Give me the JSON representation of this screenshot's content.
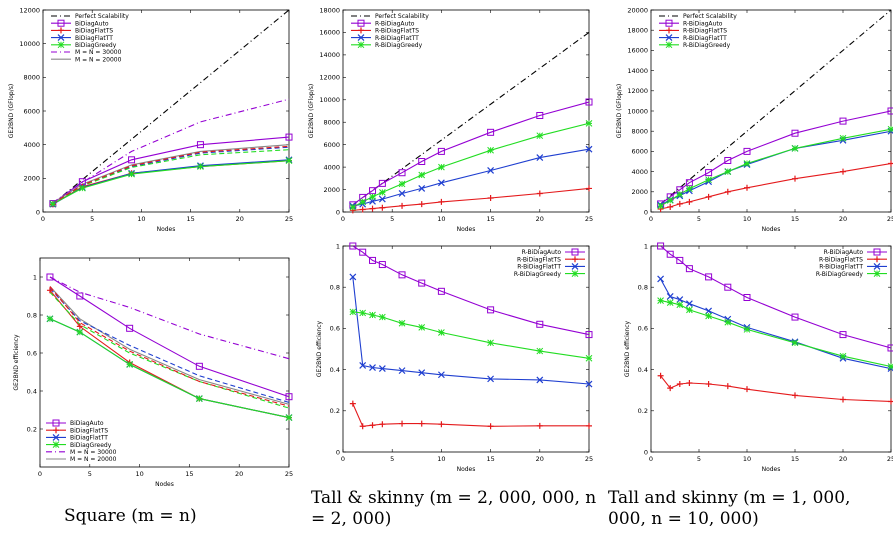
{
  "captions": {
    "col1": "Square (m = n)",
    "col2": "Tall & skinny (m = 2, 000, 000, n = 2, 000)",
    "col3": "Tall and skinny (m = 1, 000, 000, n = 10, 000)"
  },
  "chart_data": [
    {
      "id": "square-perf",
      "type": "line",
      "xlabel": "Nodes",
      "ylabel": "GE2BND (GFlop/s)",
      "xlim": [
        0,
        25
      ],
      "ylim": [
        0,
        12000
      ],
      "xticks": [
        0,
        5,
        10,
        15,
        20,
        25
      ],
      "yticks": [
        0,
        2000,
        4000,
        6000,
        8000,
        10000,
        12000
      ],
      "legend": "top-left",
      "series": [
        {
          "name": "Perfect Scalability",
          "color": "#000000",
          "dash": "6,3,1,3",
          "marker": "none",
          "x": [
            1,
            25
          ],
          "y": [
            480,
            12000
          ]
        },
        {
          "name": "BiDiagAuto",
          "color": "#9400d3",
          "dash": "",
          "marker": "square",
          "x": [
            1,
            4,
            9,
            16,
            25
          ],
          "y": [
            500,
            1800,
            3100,
            4000,
            4450
          ]
        },
        {
          "name": "BiDiagFlatTS",
          "color": "#e41a1c",
          "dash": "",
          "marker": "plus",
          "x": [
            1,
            4,
            9,
            16,
            25
          ],
          "y": [
            450,
            1500,
            2300,
            2700,
            3050
          ]
        },
        {
          "name": "BiDiagFlatTT",
          "color": "#1f3fd0",
          "dash": "",
          "marker": "x",
          "x": [
            1,
            4,
            9,
            16,
            25
          ],
          "y": [
            460,
            1450,
            2300,
            2750,
            3100
          ]
        },
        {
          "name": "BiDiagGreedy",
          "color": "#22dd22",
          "dash": "",
          "marker": "star",
          "x": [
            1,
            4,
            9,
            16,
            25
          ],
          "y": [
            480,
            1420,
            2250,
            2700,
            3050
          ]
        },
        {
          "name": "M = N = 30000",
          "color": "#9400d3",
          "dash": "6,3,1,3",
          "marker": "none",
          "x": [
            1,
            4,
            9,
            16,
            25
          ],
          "y": [
            560,
            1750,
            3600,
            5350,
            6700
          ]
        },
        {
          "name": "M = N = 20000",
          "color": "#888888",
          "dash": "",
          "marker": "none",
          "x": [
            1,
            4,
            9,
            16,
            25
          ],
          "y": [
            520,
            1650,
            2800,
            3600,
            4000
          ]
        },
        {
          "name": "",
          "color": "#1f3fd0",
          "dash": "5,3",
          "marker": "none",
          "x": [
            1,
            4,
            9,
            16,
            25
          ],
          "y": [
            500,
            1600,
            2700,
            3500,
            3850
          ]
        },
        {
          "name": "",
          "color": "#22dd22",
          "dash": "5,3",
          "marker": "none",
          "x": [
            1,
            4,
            9,
            16,
            25
          ],
          "y": [
            490,
            1550,
            2650,
            3400,
            3700
          ]
        },
        {
          "name": "",
          "color": "#e41a1c",
          "dash": "5,3",
          "marker": "none",
          "x": [
            1,
            4,
            9,
            16,
            25
          ],
          "y": [
            500,
            1600,
            2750,
            3550,
            3900
          ]
        }
      ]
    },
    {
      "id": "ts2000-perf",
      "type": "line",
      "xlabel": "Nodes",
      "ylabel": "GE2BND (GFlop/s)",
      "xlim": [
        0,
        25
      ],
      "ylim": [
        0,
        18000
      ],
      "xticks": [
        0,
        5,
        10,
        15,
        20,
        25
      ],
      "yticks": [
        0,
        2000,
        4000,
        6000,
        8000,
        10000,
        12000,
        14000,
        16000,
        18000
      ],
      "legend": "top-left",
      "series": [
        {
          "name": "Perfect Scalability",
          "color": "#000000",
          "dash": "6,3,1,3",
          "marker": "none",
          "x": [
            1,
            25
          ],
          "y": [
            640,
            16000
          ]
        },
        {
          "name": "R-BiDiagAuto",
          "color": "#9400d3",
          "dash": "",
          "marker": "square",
          "x": [
            1,
            2,
            3,
            4,
            6,
            8,
            10,
            15,
            20,
            25
          ],
          "y": [
            640,
            1300,
            1900,
            2550,
            3500,
            4500,
            5400,
            7100,
            8600,
            9800
          ]
        },
        {
          "name": "R-BiDiagFlatTS",
          "color": "#e41a1c",
          "dash": "",
          "marker": "plus",
          "x": [
            1,
            2,
            3,
            4,
            6,
            8,
            10,
            15,
            20,
            25
          ],
          "y": [
            150,
            220,
            300,
            380,
            550,
            700,
            900,
            1250,
            1650,
            2100
          ]
        },
        {
          "name": "R-BiDiagFlatTT",
          "color": "#1f3fd0",
          "dash": "",
          "marker": "x",
          "x": [
            1,
            2,
            3,
            4,
            6,
            8,
            10,
            15,
            20,
            25
          ],
          "y": [
            530,
            700,
            950,
            1150,
            1650,
            2100,
            2600,
            3700,
            4850,
            5600
          ]
        },
        {
          "name": "R-BiDiagGreedy",
          "color": "#22dd22",
          "dash": "",
          "marker": "star",
          "x": [
            1,
            2,
            3,
            4,
            6,
            8,
            10,
            15,
            20,
            25
          ],
          "y": [
            430,
            900,
            1350,
            1750,
            2500,
            3300,
            4000,
            5500,
            6800,
            7900
          ]
        }
      ]
    },
    {
      "id": "ts10000-perf",
      "type": "line",
      "xlabel": "Nodes",
      "ylabel": "GE2BND (GFlop/s)",
      "xlim": [
        0,
        25
      ],
      "ylim": [
        0,
        20000
      ],
      "xticks": [
        0,
        5,
        10,
        15,
        20,
        25
      ],
      "yticks": [
        0,
        2000,
        4000,
        6000,
        8000,
        10000,
        12000,
        14000,
        16000,
        18000,
        20000
      ],
      "legend": "top-left",
      "series": [
        {
          "name": "Perfect Scalability",
          "color": "#000000",
          "dash": "6,3,1,3",
          "marker": "none",
          "x": [
            1,
            25
          ],
          "y": [
            800,
            20000
          ]
        },
        {
          "name": "R-BiDiagAuto",
          "color": "#9400d3",
          "dash": "",
          "marker": "square",
          "x": [
            1,
            2,
            3,
            4,
            6,
            8,
            10,
            15,
            20,
            25
          ],
          "y": [
            800,
            1500,
            2200,
            2900,
            3900,
            5100,
            6000,
            7800,
            9000,
            10000
          ]
        },
        {
          "name": "R-BiDiagFlatTS",
          "color": "#e41a1c",
          "dash": "",
          "marker": "plus",
          "x": [
            1,
            2,
            3,
            4,
            6,
            8,
            10,
            15,
            20,
            25
          ],
          "y": [
            300,
            500,
            800,
            1000,
            1500,
            2000,
            2400,
            3300,
            4000,
            4800
          ]
        },
        {
          "name": "R-BiDiagFlatTT",
          "color": "#1f3fd0",
          "dash": "",
          "marker": "x",
          "x": [
            1,
            2,
            3,
            4,
            6,
            8,
            10,
            15,
            20,
            25
          ],
          "y": [
            700,
            1200,
            1600,
            2100,
            3000,
            4000,
            4700,
            6300,
            7100,
            8000
          ]
        },
        {
          "name": "R-BiDiagGreedy",
          "color": "#22dd22",
          "dash": "",
          "marker": "star",
          "x": [
            1,
            2,
            3,
            4,
            6,
            8,
            10,
            15,
            20,
            25
          ],
          "y": [
            600,
            1150,
            1750,
            2300,
            3200,
            4000,
            4800,
            6300,
            7300,
            8200
          ]
        }
      ]
    },
    {
      "id": "square-eff",
      "type": "line",
      "xlabel": "Nodes",
      "ylabel": "GE2BND efficiency",
      "xlim": [
        0,
        25
      ],
      "ylim": [
        0,
        1.1
      ],
      "xticks": [
        0,
        5,
        10,
        15,
        20,
        25
      ],
      "yticks": [
        0.2,
        0.4,
        0.6,
        0.8,
        1
      ],
      "legend": "bottom-left",
      "series": [
        {
          "name": "BiDiagAuto",
          "color": "#9400d3",
          "dash": "",
          "marker": "square",
          "x": [
            1,
            4,
            9,
            16,
            25
          ],
          "y": [
            1.0,
            0.9,
            0.73,
            0.53,
            0.37
          ]
        },
        {
          "name": "BiDiagFlatTS",
          "color": "#e41a1c",
          "dash": "",
          "marker": "plus",
          "x": [
            1,
            4,
            9,
            16,
            25
          ],
          "y": [
            0.93,
            0.74,
            0.55,
            0.36,
            0.26
          ]
        },
        {
          "name": "BiDiagFlatTT",
          "color": "#1f3fd0",
          "dash": "",
          "marker": "x",
          "x": [
            1,
            4,
            9,
            16,
            25
          ],
          "y": [
            0.78,
            0.71,
            0.54,
            0.36,
            0.26
          ]
        },
        {
          "name": "BiDiagGreedy",
          "color": "#22dd22",
          "dash": "",
          "marker": "star",
          "x": [
            1,
            4,
            9,
            16,
            25
          ],
          "y": [
            0.78,
            0.71,
            0.54,
            0.36,
            0.26
          ]
        },
        {
          "name": "M = N = 30000",
          "color": "#9400d3",
          "dash": "6,3,1,3",
          "marker": "none",
          "x": [
            1,
            4,
            9,
            16,
            25
          ],
          "y": [
            1.0,
            0.92,
            0.84,
            0.7,
            0.57
          ]
        },
        {
          "name": "M = N = 20000",
          "color": "#888888",
          "dash": "",
          "marker": "none",
          "x": [
            1,
            4,
            9,
            16,
            25
          ],
          "y": [
            0.95,
            0.78,
            0.62,
            0.46,
            0.33
          ]
        },
        {
          "name": "",
          "color": "#1f3fd0",
          "dash": "5,3",
          "marker": "none",
          "x": [
            1,
            4,
            9,
            16,
            25
          ],
          "y": [
            0.94,
            0.77,
            0.64,
            0.48,
            0.34
          ]
        },
        {
          "name": "",
          "color": "#22dd22",
          "dash": "5,3",
          "marker": "none",
          "x": [
            1,
            4,
            9,
            16,
            25
          ],
          "y": [
            0.92,
            0.75,
            0.6,
            0.45,
            0.31
          ]
        },
        {
          "name": "",
          "color": "#e41a1c",
          "dash": "5,3",
          "marker": "none",
          "x": [
            1,
            4,
            9,
            16,
            25
          ],
          "y": [
            0.95,
            0.76,
            0.61,
            0.45,
            0.32
          ]
        }
      ]
    },
    {
      "id": "ts2000-eff",
      "type": "line",
      "xlabel": "Nodes",
      "ylabel": "GE2BND efficiency",
      "xlim": [
        0,
        25
      ],
      "ylim": [
        0,
        1.0
      ],
      "xticks": [
        0,
        5,
        10,
        15,
        20,
        25
      ],
      "yticks": [
        0,
        0.2,
        0.4,
        0.6,
        0.8,
        1
      ],
      "legend": "top-right",
      "series": [
        {
          "name": "R-BiDiagAuto",
          "color": "#9400d3",
          "dash": "",
          "marker": "square",
          "x": [
            1,
            2,
            3,
            4,
            6,
            8,
            10,
            15,
            20,
            25
          ],
          "y": [
            1.0,
            0.97,
            0.93,
            0.91,
            0.86,
            0.82,
            0.78,
            0.69,
            0.62,
            0.57
          ]
        },
        {
          "name": "R-BiDiagFlatTS",
          "color": "#e41a1c",
          "dash": "",
          "marker": "plus",
          "x": [
            1,
            2,
            3,
            4,
            6,
            8,
            10,
            15,
            20,
            25
          ],
          "y": [
            0.235,
            0.125,
            0.13,
            0.135,
            0.138,
            0.138,
            0.135,
            0.125,
            0.127,
            0.127
          ]
        },
        {
          "name": "R-BiDiagFlatTT",
          "color": "#1f3fd0",
          "dash": "",
          "marker": "x",
          "x": [
            1,
            2,
            3,
            4,
            6,
            8,
            10,
            15,
            20,
            25
          ],
          "y": [
            0.85,
            0.42,
            0.41,
            0.405,
            0.395,
            0.385,
            0.375,
            0.355,
            0.35,
            0.33
          ]
        },
        {
          "name": "R-BiDiagGreedy",
          "color": "#22dd22",
          "dash": "",
          "marker": "star",
          "x": [
            1,
            2,
            3,
            4,
            6,
            8,
            10,
            15,
            20,
            25
          ],
          "y": [
            0.68,
            0.675,
            0.665,
            0.655,
            0.625,
            0.605,
            0.58,
            0.53,
            0.49,
            0.455
          ]
        }
      ]
    },
    {
      "id": "ts10000-eff",
      "type": "line",
      "xlabel": "Nodes",
      "ylabel": "GE2BND efficiency",
      "xlim": [
        0,
        25
      ],
      "ylim": [
        0,
        1.0
      ],
      "xticks": [
        0,
        5,
        10,
        15,
        20,
        25
      ],
      "yticks": [
        0,
        0.2,
        0.4,
        0.6,
        0.8,
        1
      ],
      "legend": "top-right",
      "series": [
        {
          "name": "R-BiDiagAuto",
          "color": "#9400d3",
          "dash": "",
          "marker": "square",
          "x": [
            1,
            2,
            3,
            4,
            6,
            8,
            10,
            15,
            20,
            25
          ],
          "y": [
            1.0,
            0.96,
            0.93,
            0.89,
            0.85,
            0.8,
            0.75,
            0.655,
            0.57,
            0.505
          ]
        },
        {
          "name": "R-BiDiagFlatTS",
          "color": "#e41a1c",
          "dash": "",
          "marker": "plus",
          "x": [
            1,
            2,
            3,
            4,
            6,
            8,
            10,
            15,
            20,
            25
          ],
          "y": [
            0.37,
            0.31,
            0.33,
            0.335,
            0.33,
            0.32,
            0.305,
            0.275,
            0.255,
            0.245
          ]
        },
        {
          "name": "R-BiDiagFlatTT",
          "color": "#1f3fd0",
          "dash": "",
          "marker": "x",
          "x": [
            1,
            2,
            3,
            4,
            6,
            8,
            10,
            15,
            20,
            25
          ],
          "y": [
            0.84,
            0.755,
            0.74,
            0.72,
            0.685,
            0.645,
            0.605,
            0.535,
            0.455,
            0.405
          ]
        },
        {
          "name": "R-BiDiagGreedy",
          "color": "#22dd22",
          "dash": "",
          "marker": "star",
          "x": [
            1,
            2,
            3,
            4,
            6,
            8,
            10,
            15,
            20,
            25
          ],
          "y": [
            0.735,
            0.725,
            0.715,
            0.69,
            0.66,
            0.63,
            0.595,
            0.53,
            0.465,
            0.415
          ]
        }
      ]
    }
  ]
}
